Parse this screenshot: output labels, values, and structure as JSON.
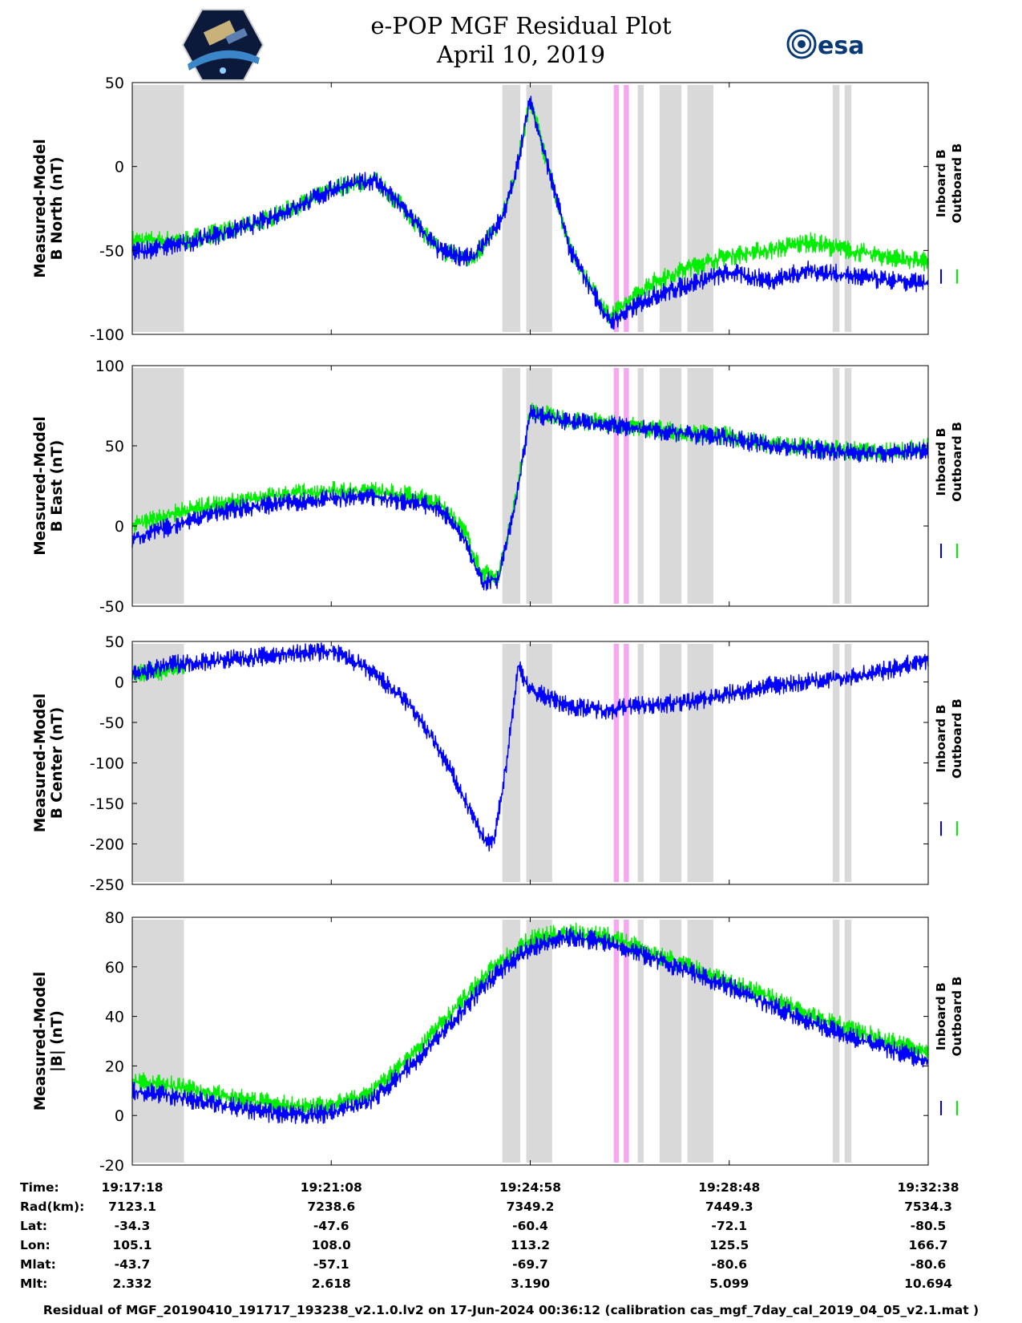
{
  "header": {
    "title_line1": "e-POP MGF Residual Plot",
    "title_line2": "April 10, 2019",
    "logo_text": "esa"
  },
  "legend": {
    "inboard": "Inboard B",
    "outboard": "Outboard B"
  },
  "colors": {
    "inboard": "#0000ff",
    "outboard": "#00ee00",
    "gray_band": "#d9d9d9",
    "pink_band": "#f5a8f0"
  },
  "chart_data": {
    "type": "line",
    "x": [
      "19:17:18",
      "19:21:08",
      "19:24:58",
      "19:28:48",
      "19:32:38"
    ],
    "x_minutes_range": [
      0,
      20
    ],
    "panels": [
      {
        "ylabel": [
          "Measured-Model",
          "B North (nT)"
        ],
        "ylim": [
          -100,
          50
        ],
        "yticks": [
          "50",
          "0",
          "-50",
          "-100"
        ],
        "series": [
          {
            "name": "Inboard B",
            "x": [
              0,
              1.3,
              3,
              4.3,
              5.2,
              6.1,
              6.9,
              7.7,
              8.5,
              8.8,
              9.3,
              9.6,
              10,
              11,
              12,
              13,
              14,
              15,
              16,
              17,
              18,
              19,
              20
            ],
            "y": [
              -51,
              -46,
              -35,
              -22,
              -12,
              -8,
              -27,
              -50,
              -55,
              -48,
              -30,
              -8,
              40,
              -50,
              -93,
              -78,
              -70,
              -63,
              -68,
              -62,
              -65,
              -68,
              -70
            ]
          },
          {
            "name": "Outboard B",
            "x": [
              0,
              1.3,
              3,
              4.3,
              5.2,
              6.1,
              6.9,
              7.7,
              8.5,
              8.8,
              9.3,
              9.6,
              10,
              11,
              12,
              13,
              14,
              15,
              16,
              17,
              18,
              19,
              20
            ],
            "y": [
              -44,
              -44,
              -35,
              -22,
              -12,
              -8,
              -27,
              -50,
              -55,
              -48,
              -30,
              -8,
              40,
              -50,
              -90,
              -70,
              -60,
              -53,
              -50,
              -45,
              -50,
              -54,
              -57
            ]
          }
        ]
      },
      {
        "ylabel": [
          "Measured-Model",
          "B East (nT)"
        ],
        "ylim": [
          -50,
          100
        ],
        "yticks": [
          "100",
          "50",
          "0",
          "-50"
        ],
        "series": [
          {
            "name": "Inboard B",
            "x": [
              0,
              1,
              2,
              3,
              4,
              5,
              6,
              7,
              7.6,
              8,
              8.4,
              8.6,
              8.8,
              9.2,
              9.6,
              10,
              10.6,
              11,
              12,
              13,
              14,
              15,
              16,
              17,
              18,
              19,
              20
            ],
            "y": [
              -8,
              0,
              8,
              12,
              15,
              17,
              18,
              15,
              12,
              5,
              -10,
              -25,
              -35,
              -33,
              10,
              70,
              67,
              65,
              63,
              60,
              57,
              55,
              50,
              48,
              46,
              45,
              48
            ]
          },
          {
            "name": "Outboard B",
            "x": [
              0,
              1,
              2,
              3,
              4,
              5,
              6,
              7,
              7.6,
              8,
              8.4,
              8.6,
              8.8,
              9.2,
              9.6,
              10,
              10.6,
              11,
              12,
              13,
              14,
              15,
              16,
              17,
              18,
              19,
              20
            ],
            "y": [
              0,
              8,
              13,
              17,
              20,
              22,
              22,
              19,
              15,
              8,
              -6,
              -20,
              -30,
              -30,
              12,
              72,
              68,
              66,
              64,
              61,
              58,
              56,
              51,
              49,
              47,
              46,
              49
            ]
          }
        ]
      },
      {
        "ylabel": [
          "Measured-Model",
          "B Center (nT)"
        ],
        "ylim": [
          -250,
          50
        ],
        "yticks": [
          "50",
          "0",
          "-50",
          "-100",
          "-150",
          "-200",
          "-250"
        ],
        "series": [
          {
            "name": "Inboard B",
            "x": [
              0,
              1,
              2,
              3,
              4,
              5,
              5.6,
              6.2,
              7,
              7.6,
              8,
              8.4,
              8.6,
              8.9,
              9.1,
              9.4,
              9.7,
              10,
              11,
              12,
              12.5,
              13,
              14,
              15,
              16,
              17,
              18,
              19,
              20
            ],
            "y": [
              8,
              22,
              26,
              30,
              35,
              38,
              25,
              5,
              -30,
              -75,
              -110,
              -150,
              -170,
              -200,
              -195,
              -100,
              20,
              -10,
              -30,
              -35,
              -30,
              -28,
              -25,
              -15,
              -5,
              0,
              5,
              15,
              28
            ]
          },
          {
            "name": "Outboard B",
            "x": [
              0,
              0.8,
              1.3
            ],
            "y": [
              10,
              14,
              20
            ]
          }
        ]
      },
      {
        "ylabel": [
          "Measured-Model",
          "|B| (nT)"
        ],
        "ylim": [
          -20,
          80
        ],
        "yticks": [
          "80",
          "60",
          "40",
          "20",
          "0",
          "-20"
        ],
        "series": [
          {
            "name": "Inboard B",
            "x": [
              0,
              1,
              2,
              3,
              4,
              5,
              6,
              7,
              8,
              9,
              10,
              11,
              12,
              13,
              14,
              15,
              16,
              17,
              18,
              19,
              20
            ],
            "y": [
              10,
              8,
              5,
              2,
              0,
              1,
              6,
              20,
              37,
              55,
              68,
              72,
              70,
              64,
              58,
              52,
              45,
              38,
              32,
              27,
              22
            ]
          },
          {
            "name": "Outboard B",
            "x": [
              0,
              1,
              2,
              3,
              4,
              5,
              6,
              7,
              8,
              9,
              10,
              11,
              12,
              13,
              14,
              15,
              16,
              17,
              18,
              19,
              20
            ],
            "y": [
              14,
              12,
              9,
              6,
              4,
              4,
              9,
              24,
              41,
              59,
              71,
              74,
              72,
              66,
              60,
              54,
              48,
              41,
              35,
              30,
              25
            ]
          }
        ]
      }
    ],
    "gray_bands_minutes": [
      [
        0,
        1.3
      ],
      [
        9.3,
        9.75
      ],
      [
        9.9,
        10.55
      ],
      [
        12.7,
        12.85
      ],
      [
        13.25,
        13.8
      ],
      [
        13.95,
        14.6
      ]
    ],
    "pink_bands_minutes": [
      [
        12.1,
        12.23
      ],
      [
        12.35,
        12.48
      ]
    ],
    "gray_bands_extra": [
      [
        17.6,
        17.77
      ],
      [
        17.9,
        18.07
      ]
    ],
    "ephemeris": {
      "labels": [
        "Time:",
        "Rad(km):",
        "Lat:",
        "Lon:",
        "Mlat:",
        "Mlt:"
      ],
      "columns": [
        [
          "19:17:18",
          "7123.1",
          "-34.3",
          "105.1",
          "-43.7",
          "2.332"
        ],
        [
          "19:21:08",
          "7238.6",
          "-47.6",
          "108.0",
          "-57.1",
          "2.618"
        ],
        [
          "19:24:58",
          "7349.2",
          "-60.4",
          "113.2",
          "-69.7",
          "3.190"
        ],
        [
          "19:28:48",
          "7449.3",
          "-72.1",
          "125.5",
          "-80.6",
          "5.099"
        ],
        [
          "19:32:38",
          "7534.3",
          "-80.5",
          "166.7",
          "-80.6",
          "10.694"
        ]
      ]
    }
  },
  "footer": "Residual of MGF_20190410_191717_193238_v2.1.0.lv2 on 17-Jun-2024 00:36:12 (calibration cas_mgf_7day_cal_2019_04_05_v2.1.mat )"
}
